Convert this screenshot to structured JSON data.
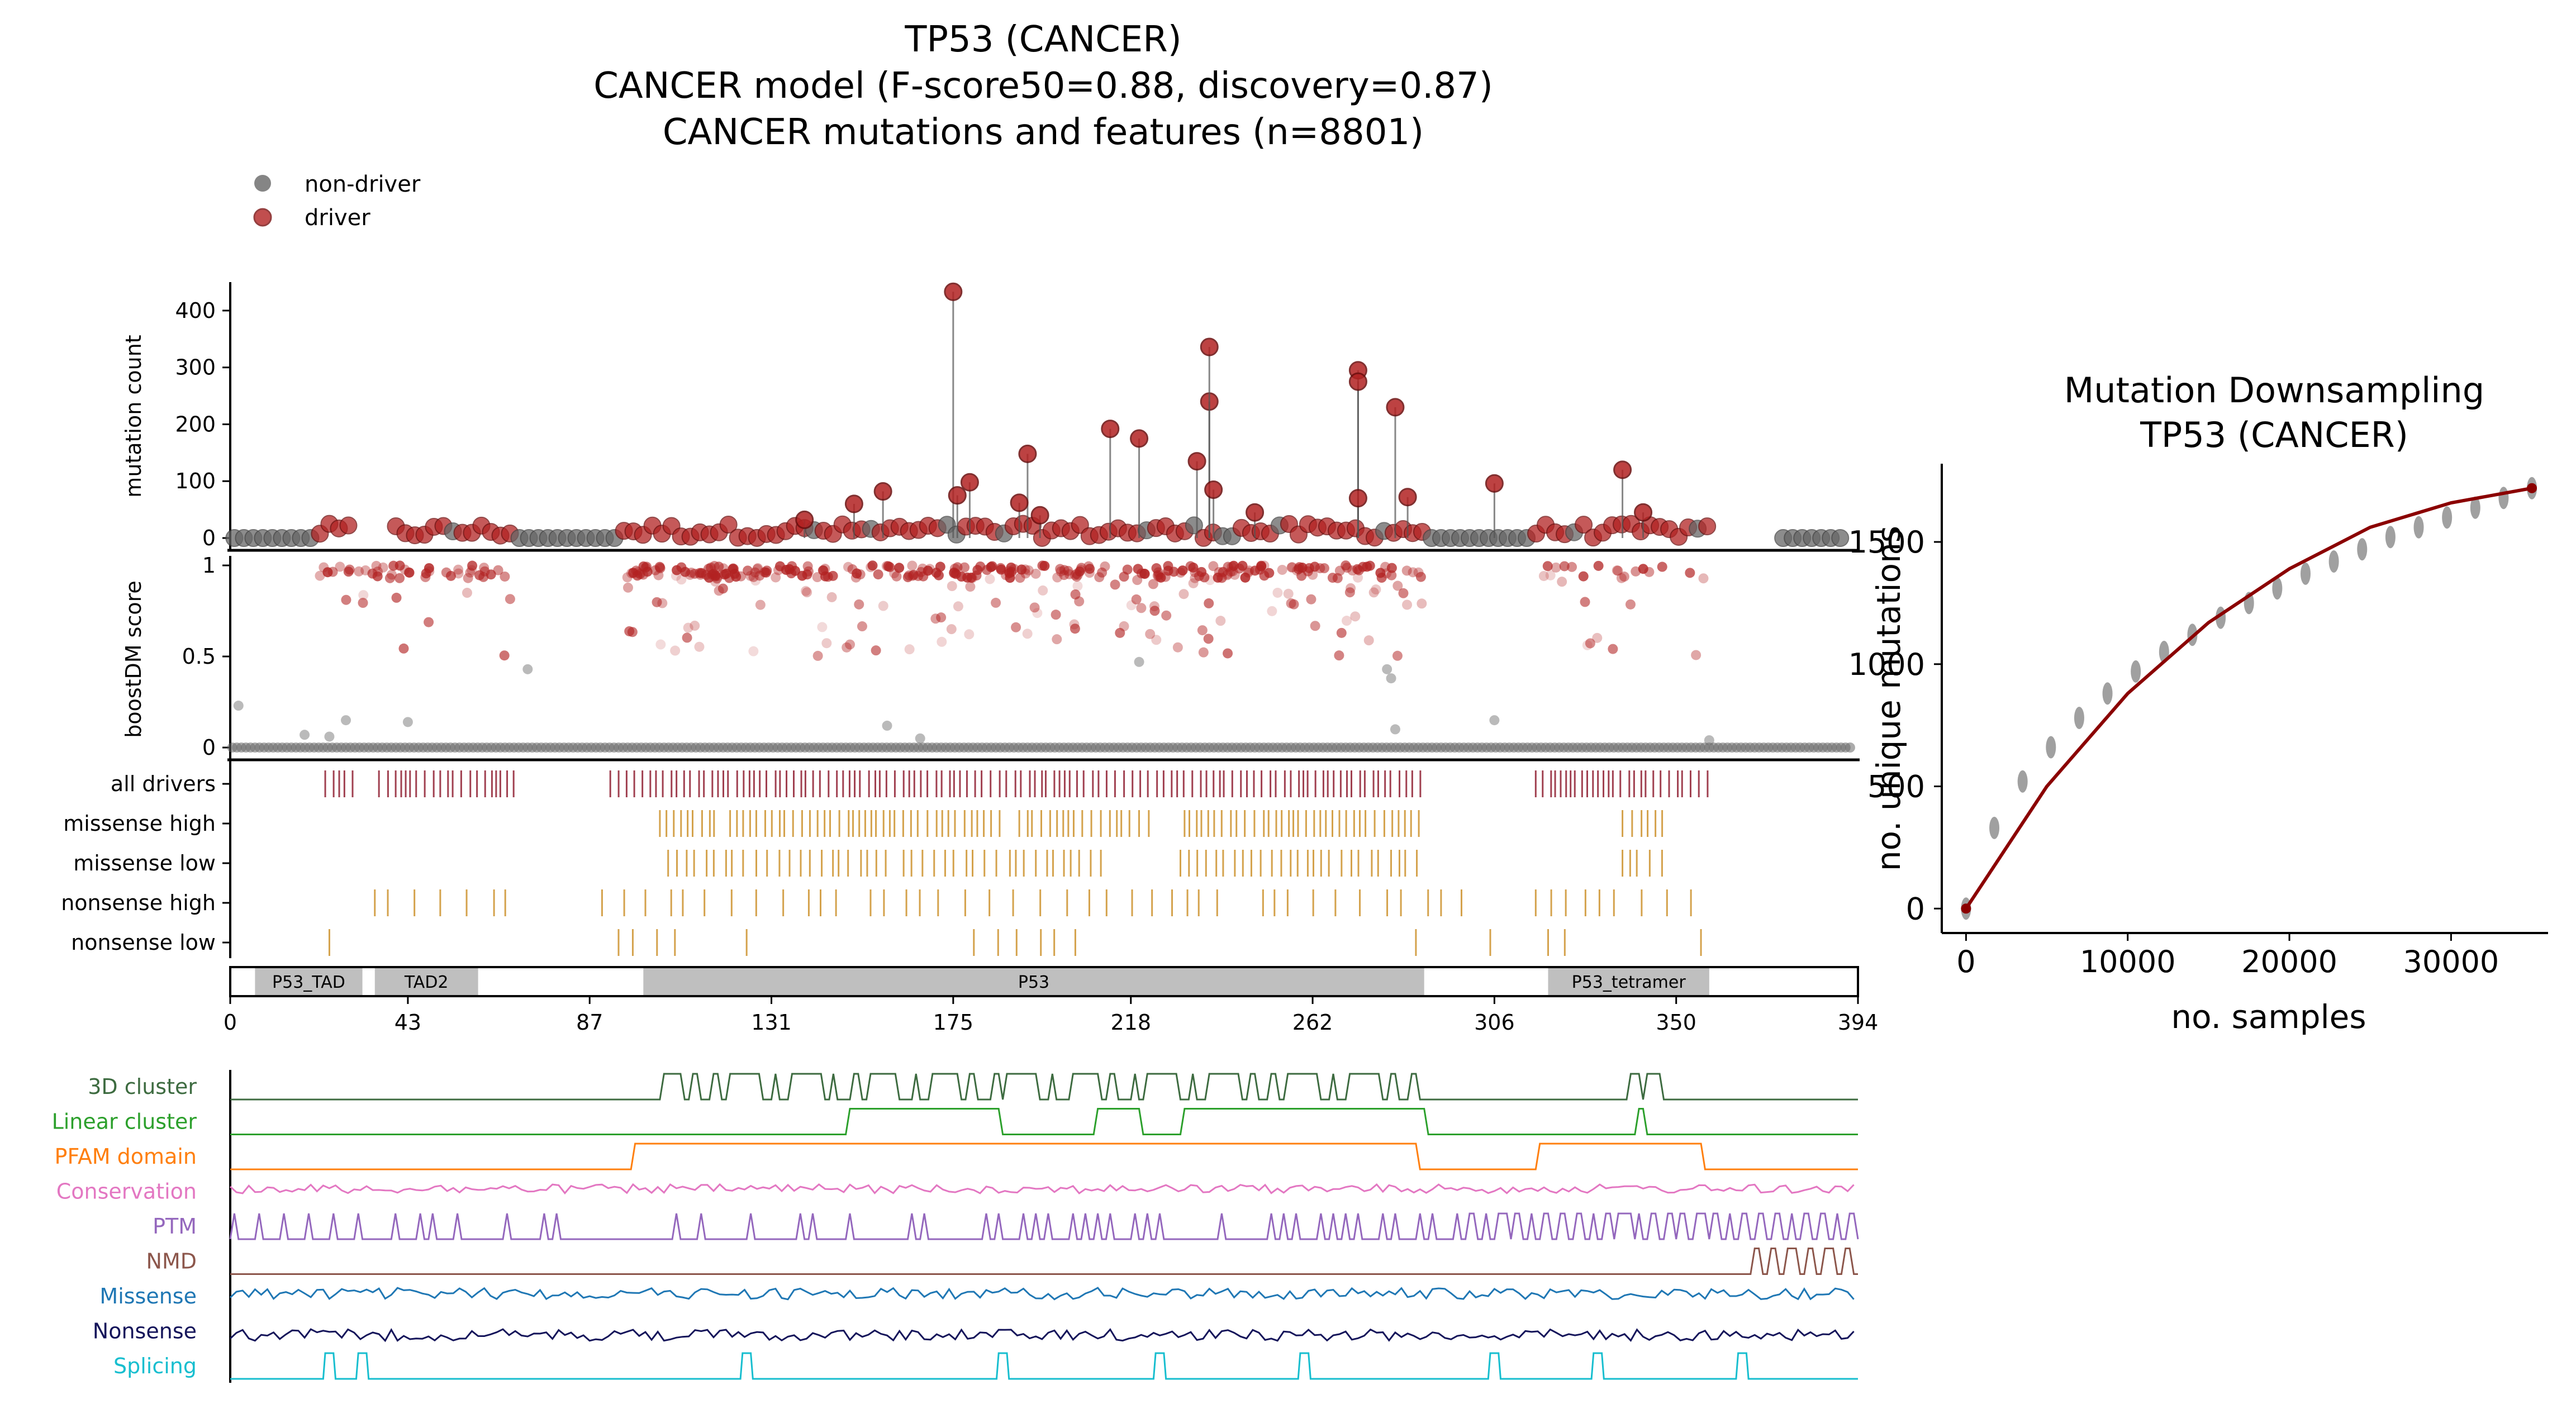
{
  "title_lines": [
    "TP53 (CANCER)",
    "CANCER model (F-score50=0.88, discovery=0.87)",
    "CANCER mutations and features (n=8801)"
  ],
  "legend": [
    {
      "label": "non-driver",
      "color": "#666666"
    },
    {
      "label": "driver",
      "color": "#b22222"
    }
  ],
  "colors": {
    "driver": "#b22222",
    "non_driver": "#666666",
    "driver_tick": "#a04050",
    "consequence_tick": "#d4a24c",
    "domain_fill": "#bfbfbf",
    "fit_line": "#8b0000"
  },
  "chart_data": [
    {
      "id": "mutation-count",
      "type": "scatter",
      "ylabel": "mutation count",
      "yticks": [
        0,
        100,
        200,
        300,
        400
      ],
      "ylim": [
        0,
        450
      ],
      "xlim": [
        0,
        394
      ],
      "driver_peaks": [
        {
          "x": 175,
          "y": 433
        },
        {
          "x": 176,
          "y": 75
        },
        {
          "x": 179,
          "y": 98
        },
        {
          "x": 158,
          "y": 82
        },
        {
          "x": 193,
          "y": 148
        },
        {
          "x": 196,
          "y": 40
        },
        {
          "x": 213,
          "y": 192
        },
        {
          "x": 220,
          "y": 175
        },
        {
          "x": 234,
          "y": 135
        },
        {
          "x": 237,
          "y": 240
        },
        {
          "x": 237,
          "y": 336
        },
        {
          "x": 238,
          "y": 85
        },
        {
          "x": 248,
          "y": 45
        },
        {
          "x": 273,
          "y": 295
        },
        {
          "x": 273,
          "y": 275
        },
        {
          "x": 273,
          "y": 70
        },
        {
          "x": 282,
          "y": 230
        },
        {
          "x": 285,
          "y": 72
        },
        {
          "x": 306,
          "y": 96
        },
        {
          "x": 342,
          "y": 45
        },
        {
          "x": 337,
          "y": 120
        },
        {
          "x": 139,
          "y": 32
        },
        {
          "x": 151,
          "y": 60
        },
        {
          "x": 191,
          "y": 62
        }
      ]
    },
    {
      "id": "boostdm-score",
      "type": "scatter",
      "ylabel": "boostDM score",
      "yticks": [
        0,
        0.5,
        1
      ],
      "ylim": [
        0,
        1.05
      ],
      "xlim": [
        0,
        394
      ]
    },
    {
      "id": "consequence-tracks",
      "type": "table",
      "rows": [
        "all drivers",
        "missense high",
        "missense low",
        "nonsense high",
        "nonsense low"
      ],
      "xlim": [
        0,
        394
      ],
      "domains": [
        {
          "name": "P53_TAD",
          "start": 6,
          "end": 32
        },
        {
          "name": "TAD2",
          "start": 35,
          "end": 60
        },
        {
          "name": "P53",
          "start": 100,
          "end": 289
        },
        {
          "name": "P53_tetramer",
          "start": 319,
          "end": 358
        }
      ],
      "xticks": [
        0,
        43,
        87,
        131,
        175,
        218,
        262,
        306,
        350,
        394
      ]
    },
    {
      "id": "feature-tracks",
      "type": "line",
      "xlim": [
        0,
        394
      ],
      "series": [
        {
          "name": "3D cluster",
          "color": "#3d6b40"
        },
        {
          "name": "Linear cluster",
          "color": "#2ca02c"
        },
        {
          "name": "PFAM domain",
          "color": "#ff7f0e"
        },
        {
          "name": "Conservation",
          "color": "#e377c2"
        },
        {
          "name": "PTM",
          "color": "#9467bd"
        },
        {
          "name": "NMD",
          "color": "#8c564b"
        },
        {
          "name": "Missense",
          "color": "#1f77b4"
        },
        {
          "name": "Nonsense",
          "color": "#14145a"
        },
        {
          "name": "Splicing",
          "color": "#17becf"
        }
      ]
    },
    {
      "id": "downsampling",
      "type": "scatter",
      "title_lines": [
        "Mutation Downsampling",
        "TP53 (CANCER)"
      ],
      "xlabel": "no. samples",
      "ylabel": "no. unique mutations",
      "xticks": [
        0,
        10000,
        20000,
        30000
      ],
      "yticks": [
        0,
        500,
        1000,
        1500
      ],
      "xlim": [
        -1500,
        36000
      ],
      "ylim": [
        -100,
        1820
      ],
      "x": [
        0,
        1750,
        3500,
        5250,
        7000,
        8750,
        10500,
        12250,
        14000,
        15750,
        17500,
        19250,
        21000,
        22750,
        24500,
        26250,
        28000,
        29750,
        31500,
        33250,
        35000
      ],
      "y": [
        0,
        330,
        520,
        660,
        780,
        880,
        970,
        1050,
        1120,
        1190,
        1250,
        1310,
        1370,
        1420,
        1470,
        1520,
        1560,
        1600,
        1640,
        1680,
        1720
      ],
      "fit": {
        "x": [
          0,
          5000,
          10000,
          15000,
          20000,
          25000,
          30000,
          35000
        ],
        "y": [
          0,
          500,
          880,
          1170,
          1390,
          1560,
          1660,
          1720
        ]
      }
    }
  ]
}
